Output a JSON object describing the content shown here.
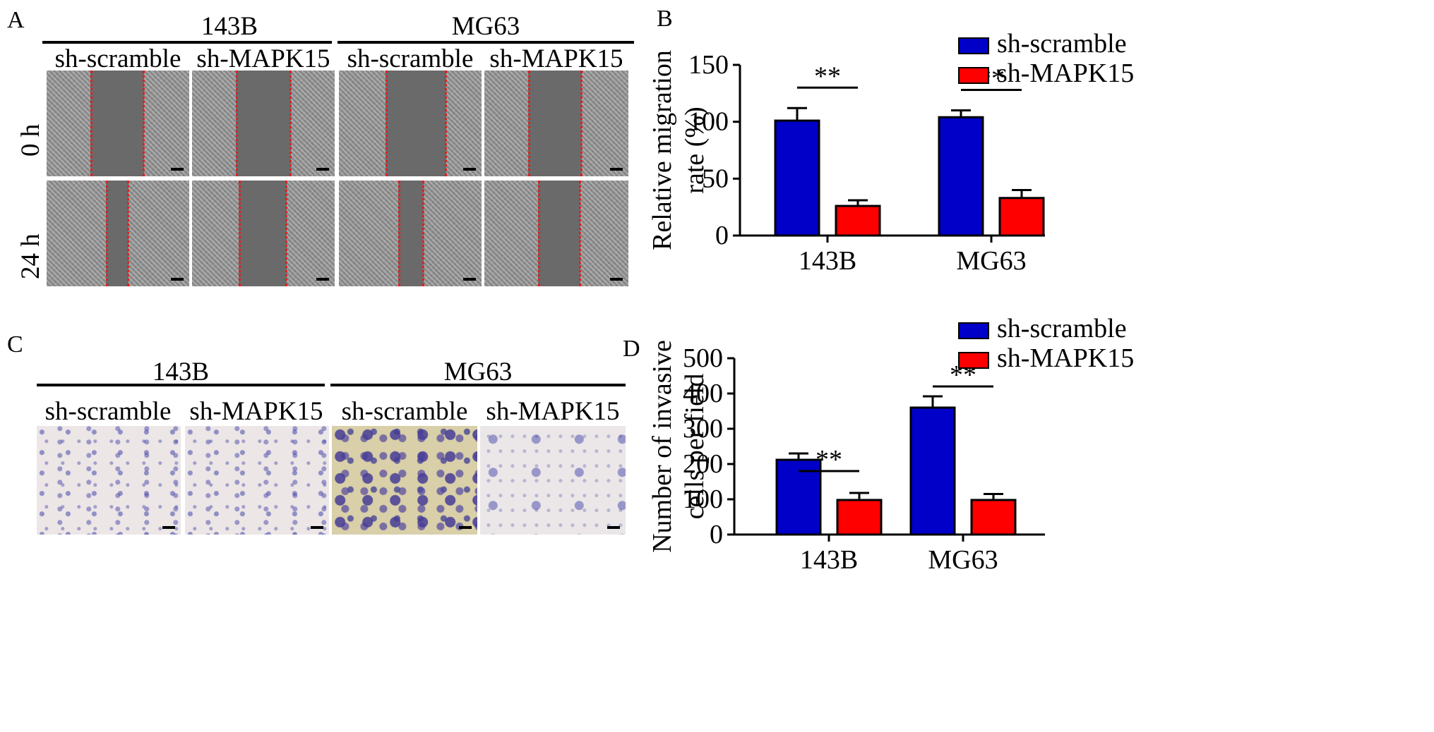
{
  "panels": {
    "a": {
      "label": "A",
      "groups": [
        "143B",
        "MG63"
      ],
      "conditions": [
        "sh-scramble",
        "sh-MAPK15",
        "sh-scramble",
        "sh-MAPK15"
      ],
      "rows": [
        "0 h",
        "24 h"
      ]
    },
    "b": {
      "label": "B"
    },
    "c": {
      "label": "C",
      "groups": [
        "143B",
        "MG63"
      ],
      "conditions": [
        "sh-scramble",
        "sh-MAPK15",
        "sh-scramble",
        "sh-MAPK15"
      ]
    },
    "d": {
      "label": "D"
    }
  },
  "colors": {
    "series1": "#0000c8",
    "series2": "#ff0000",
    "scratch_line": "#e02020"
  },
  "chart_data": [
    {
      "type": "bar",
      "panel": "B",
      "categories": [
        "143B",
        "MG63"
      ],
      "series": [
        {
          "name": "sh-scramble",
          "values": [
            101,
            104
          ],
          "errors": [
            11,
            6
          ]
        },
        {
          "name": "sh-MAPK15",
          "values": [
            26,
            33
          ],
          "errors": [
            5,
            7
          ]
        }
      ],
      "ylabel_lines": [
        "Relative migration",
        "rate (%)"
      ],
      "ylim": [
        0,
        150
      ],
      "yticks": [
        0,
        50,
        100,
        150
      ],
      "significance": [
        "**",
        "**"
      ],
      "legend": "top-right"
    },
    {
      "type": "bar",
      "panel": "D",
      "categories": [
        "143B",
        "MG63"
      ],
      "series": [
        {
          "name": "sh-scramble",
          "values": [
            212,
            360
          ],
          "errors": [
            18,
            32
          ]
        },
        {
          "name": "sh-MAPK15",
          "values": [
            98,
            98
          ],
          "errors": [
            20,
            17
          ]
        }
      ],
      "ylabel_lines": [
        "Number of invasive",
        "cells per field"
      ],
      "ylim": [
        0,
        500
      ],
      "yticks": [
        0,
        100,
        200,
        300,
        400,
        500
      ],
      "significance": [
        "**",
        "**"
      ],
      "legend": "top-right"
    }
  ]
}
